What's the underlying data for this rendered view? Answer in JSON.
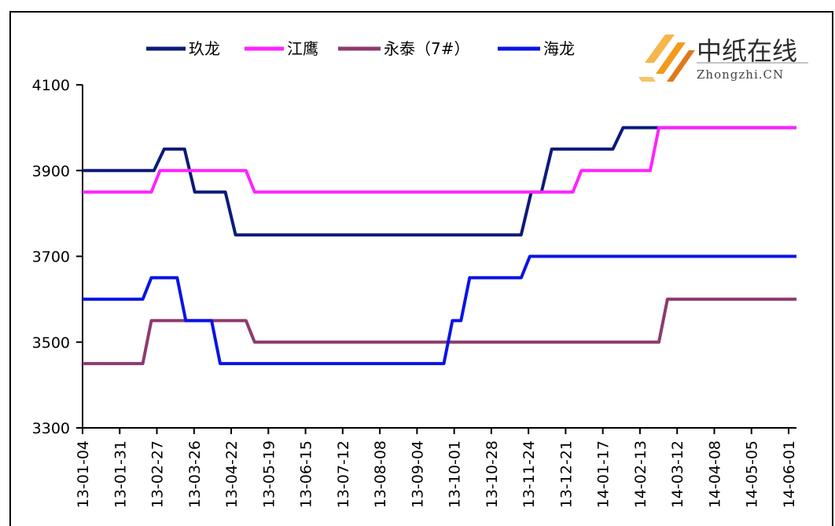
{
  "chart_data": {
    "type": "line",
    "title": "",
    "xlabel": "",
    "ylabel": "",
    "ylim": [
      3300,
      4100
    ],
    "y_ticks": [
      "3300",
      "3500",
      "3700",
      "3900",
      "4100"
    ],
    "x_tick_labels": [
      "13-01-04",
      "13-01-31",
      "13-02-27",
      "13-03-26",
      "13-04-22",
      "13-05-19",
      "13-06-15",
      "13-07-12",
      "13-08-08",
      "13-09-04",
      "13-10-01",
      "13-10-28",
      "13-11-24",
      "13-12-21",
      "14-01-17",
      "14-02-13",
      "14-03-12",
      "14-04-08",
      "14-05-05",
      "14-06-01"
    ],
    "grid": false,
    "legend_position": "top",
    "series": [
      {
        "name": "玖龙",
        "color": "#0b1a7a",
        "values": [
          3900,
          3900,
          3900,
          3900,
          3900,
          3900,
          3900,
          3900,
          3950,
          3950,
          3950,
          3850,
          3850,
          3850,
          3850,
          3750,
          3750,
          3750,
          3750,
          3750,
          3750,
          3750,
          3750,
          3750,
          3750,
          3750,
          3750,
          3750,
          3750,
          3750,
          3750,
          3750,
          3750,
          3750,
          3750,
          3750,
          3750,
          3750,
          3750,
          3750,
          3750,
          3750,
          3750,
          3750,
          3850,
          3850,
          3950,
          3950,
          3950,
          3950,
          3950,
          3950,
          3950,
          4000,
          4000,
          4000,
          4000,
          4000,
          4000,
          4000,
          4000,
          4000,
          4000,
          4000,
          4000,
          4000,
          4000,
          4000,
          4000,
          4000,
          4000
        ]
      },
      {
        "name": "江鹰",
        "color": "#ff22ff",
        "values": [
          3850,
          3850,
          3850,
          3850,
          3850,
          3850,
          3850,
          3850,
          3850,
          3900,
          3900,
          3900,
          3900,
          3900,
          3900,
          3900,
          3900,
          3900,
          3900,
          3900,
          3850,
          3850,
          3850,
          3850,
          3850,
          3850,
          3850,
          3850,
          3850,
          3850,
          3850,
          3850,
          3850,
          3850,
          3850,
          3850,
          3850,
          3850,
          3850,
          3850,
          3850,
          3850,
          3850,
          3850,
          3850,
          3850,
          3850,
          3850,
          3850,
          3850,
          3850,
          3850,
          3850,
          3850,
          3850,
          3850,
          3850,
          3850,
          3900,
          3900,
          3900,
          3900,
          3900,
          3900,
          3900,
          3900,
          3900,
          4000,
          4000,
          4000,
          4000,
          4000,
          4000,
          4000,
          4000,
          4000,
          4000,
          4000,
          4000,
          4000,
          4000,
          4000,
          4000,
          4000
        ]
      },
      {
        "name": "永泰（7#）",
        "color": "#8e3a6e",
        "values": [
          3450,
          3450,
          3450,
          3450,
          3450,
          3450,
          3450,
          3450,
          3550,
          3550,
          3550,
          3550,
          3550,
          3550,
          3550,
          3550,
          3550,
          3550,
          3550,
          3550,
          3500,
          3500,
          3500,
          3500,
          3500,
          3500,
          3500,
          3500,
          3500,
          3500,
          3500,
          3500,
          3500,
          3500,
          3500,
          3500,
          3500,
          3500,
          3500,
          3500,
          3500,
          3500,
          3500,
          3500,
          3500,
          3500,
          3500,
          3500,
          3500,
          3500,
          3500,
          3500,
          3500,
          3500,
          3500,
          3500,
          3500,
          3500,
          3500,
          3500,
          3500,
          3500,
          3500,
          3500,
          3500,
          3500,
          3500,
          3500,
          3600,
          3600,
          3600,
          3600,
          3600,
          3600,
          3600,
          3600,
          3600,
          3600,
          3600,
          3600,
          3600,
          3600,
          3600,
          3600
        ]
      },
      {
        "name": "海龙",
        "color": "#0a14e6",
        "values": [
          3600,
          3600,
          3600,
          3600,
          3600,
          3600,
          3600,
          3600,
          3650,
          3650,
          3650,
          3650,
          3550,
          3550,
          3550,
          3550,
          3450,
          3450,
          3450,
          3450,
          3450,
          3450,
          3450,
          3450,
          3450,
          3450,
          3450,
          3450,
          3450,
          3450,
          3450,
          3450,
          3450,
          3450,
          3450,
          3450,
          3450,
          3450,
          3450,
          3450,
          3450,
          3450,
          3450,
          3550,
          3550,
          3650,
          3650,
          3650,
          3650,
          3650,
          3650,
          3650,
          3700,
          3700,
          3700,
          3700,
          3700,
          3700,
          3700,
          3700,
          3700,
          3700,
          3700,
          3700,
          3700,
          3700,
          3700,
          3700,
          3700,
          3700,
          3700,
          3700,
          3700,
          3700,
          3700,
          3700,
          3700,
          3700,
          3700,
          3700,
          3700,
          3700,
          3700,
          3700
        ]
      }
    ]
  },
  "logo": {
    "name_cn": "中纸在线",
    "name_en": "Zhongzhi.CN",
    "accent": "#f39a1a"
  }
}
